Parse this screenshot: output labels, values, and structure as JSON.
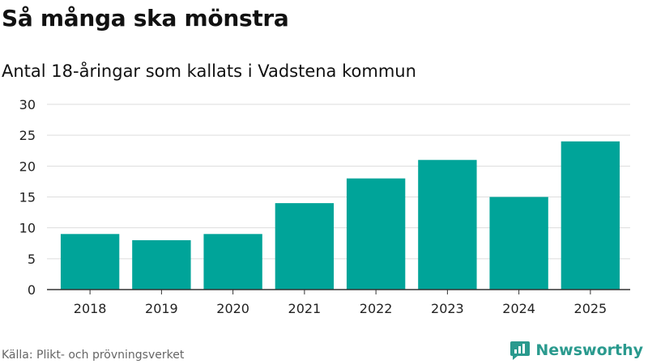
{
  "header": {
    "title": "Så många ska mönstra",
    "subtitle": "Antal 18-åringar som kallats i Vadstena kommun"
  },
  "footer": {
    "source": "Källa: Plikt- och prövningsverket",
    "brand": "Newsworthy"
  },
  "colors": {
    "bar": "#00a499",
    "grid": "#dddddd",
    "axis": "#333333",
    "brand": "#2a9a8e"
  },
  "chart_data": {
    "type": "bar",
    "title": "Så många ska mönstra",
    "subtitle": "Antal 18-åringar som kallats i Vadstena kommun",
    "categories": [
      "2018",
      "2019",
      "2020",
      "2021",
      "2022",
      "2023",
      "2024",
      "2025"
    ],
    "values": [
      9,
      8,
      9,
      14,
      18,
      21,
      15,
      24
    ],
    "ylim": [
      0,
      30
    ],
    "yticks": [
      0,
      5,
      10,
      15,
      20,
      25,
      30
    ],
    "grid": true,
    "legend": "none",
    "xlabel": "",
    "ylabel": ""
  }
}
